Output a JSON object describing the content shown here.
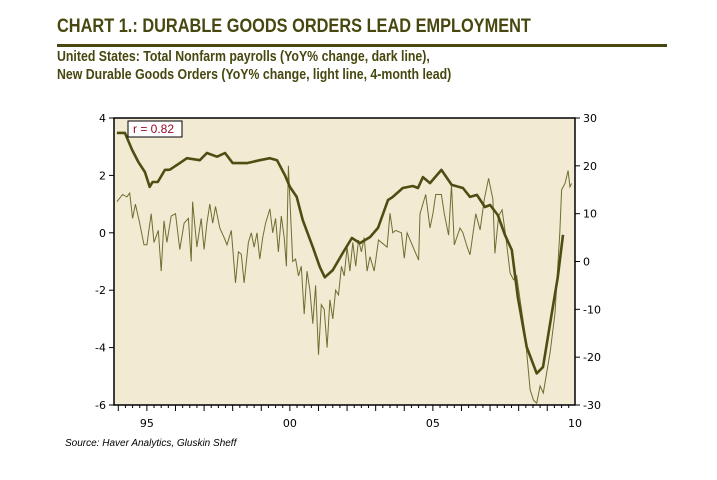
{
  "title": "CHART 1.: DURABLE GOODS ORDERS LEAD EMPLOYMENT",
  "subtitle_line1": "United States: Total Nonfarm payrolls (YoY% change, dark line),",
  "subtitle_line2": "New Durable Goods Orders (YoY% change, light line, 4-month lead)",
  "source": "Source: Haver Analytics, Gluskin Sheff",
  "colors": {
    "title": "#47470f",
    "plot_bg": "#f2ead3",
    "dark_line": "#4e4e12",
    "light_line": "#6e6e30",
    "annotation_text": "#9b0a2a"
  },
  "chart_data": {
    "type": "line",
    "annotation": "r = 0.82",
    "x_range": [
      1993.85,
      2009.97
    ],
    "x_ticks": [
      {
        "value": 1995,
        "label": "95"
      },
      {
        "value": 2000,
        "label": "00"
      },
      {
        "value": 2005,
        "label": "05"
      },
      {
        "value": 2010,
        "label": "10"
      }
    ],
    "left_axis": {
      "range": [
        -6,
        4
      ],
      "ticks": [
        "4",
        "2",
        "0",
        "-2",
        "-4",
        "-6"
      ],
      "tick_values": [
        4,
        2,
        0,
        -2,
        -4,
        -6
      ]
    },
    "right_axis": {
      "range": [
        -30,
        30
      ],
      "ticks": [
        "30",
        "20",
        "10",
        "0",
        "-10",
        "-20",
        "-30"
      ],
      "tick_values": [
        30,
        20,
        10,
        0,
        -10,
        -20,
        -30
      ]
    },
    "grid": false,
    "series": [
      {
        "axis": "left",
        "style": "dark",
        "points": [
          [
            1993.95,
            3.48
          ],
          [
            1994.23,
            3.48
          ],
          [
            1994.48,
            2.9
          ],
          [
            1994.7,
            2.47
          ],
          [
            1994.93,
            2.12
          ],
          [
            1995.1,
            1.6
          ],
          [
            1995.2,
            1.77
          ],
          [
            1995.38,
            1.77
          ],
          [
            1995.63,
            2.19
          ],
          [
            1995.8,
            2.2
          ],
          [
            1996.15,
            2.43
          ],
          [
            1996.4,
            2.6
          ],
          [
            1996.85,
            2.53
          ],
          [
            1997.1,
            2.78
          ],
          [
            1997.45,
            2.65
          ],
          [
            1997.73,
            2.78
          ],
          [
            1998.0,
            2.43
          ],
          [
            1998.5,
            2.43
          ],
          [
            1998.95,
            2.53
          ],
          [
            1999.3,
            2.6
          ],
          [
            1999.55,
            2.53
          ],
          [
            1999.83,
            2.0
          ],
          [
            2000.0,
            1.6
          ],
          [
            2000.24,
            1.25
          ],
          [
            2000.45,
            0.45
          ],
          [
            2000.8,
            -0.5
          ],
          [
            2001.05,
            -1.2
          ],
          [
            2001.22,
            -1.55
          ],
          [
            2001.5,
            -1.3
          ],
          [
            2001.85,
            -0.7
          ],
          [
            2002.17,
            -0.18
          ],
          [
            2002.45,
            -0.36
          ],
          [
            2002.8,
            -0.15
          ],
          [
            2003.08,
            0.17
          ],
          [
            2003.43,
            1.14
          ],
          [
            2003.6,
            1.25
          ],
          [
            2003.95,
            1.56
          ],
          [
            2004.3,
            1.63
          ],
          [
            2004.48,
            1.56
          ],
          [
            2004.65,
            1.94
          ],
          [
            2004.9,
            1.73
          ],
          [
            2005.3,
            2.19
          ],
          [
            2005.66,
            1.67
          ],
          [
            2006.05,
            1.56
          ],
          [
            2006.3,
            1.25
          ],
          [
            2006.54,
            1.32
          ],
          [
            2006.82,
            0.9
          ],
          [
            2007.0,
            0.97
          ],
          [
            2007.27,
            0.62
          ],
          [
            2007.52,
            -0.07
          ],
          [
            2007.76,
            -0.6
          ],
          [
            2007.97,
            -2.24
          ],
          [
            2008.28,
            -3.98
          ],
          [
            2008.63,
            -4.9
          ],
          [
            2008.85,
            -4.68
          ],
          [
            2009.16,
            -2.8
          ],
          [
            2009.37,
            -1.54
          ],
          [
            2009.55,
            -0.07
          ]
        ]
      },
      {
        "axis": "right",
        "style": "light",
        "points": [
          [
            1993.95,
            12.5
          ],
          [
            1994.15,
            14
          ],
          [
            1994.3,
            13.5
          ],
          [
            1994.4,
            14.3
          ],
          [
            1994.5,
            9
          ],
          [
            1994.6,
            12
          ],
          [
            1994.75,
            8
          ],
          [
            1994.9,
            3.5
          ],
          [
            1995.0,
            3.5
          ],
          [
            1995.15,
            10
          ],
          [
            1995.25,
            4
          ],
          [
            1995.4,
            6.5
          ],
          [
            1995.5,
            -2
          ],
          [
            1995.6,
            8.5
          ],
          [
            1995.7,
            4
          ],
          [
            1995.85,
            9.5
          ],
          [
            1996.0,
            10
          ],
          [
            1996.15,
            2.5
          ],
          [
            1996.3,
            8
          ],
          [
            1996.45,
            9
          ],
          [
            1996.55,
            0
          ],
          [
            1996.6,
            12.5
          ],
          [
            1996.75,
            3
          ],
          [
            1996.9,
            9
          ],
          [
            1997.0,
            2.5
          ],
          [
            1997.1,
            8
          ],
          [
            1997.2,
            12
          ],
          [
            1997.3,
            8
          ],
          [
            1997.4,
            11.5
          ],
          [
            1997.55,
            7
          ],
          [
            1997.7,
            5
          ],
          [
            1997.8,
            3.5
          ],
          [
            1997.95,
            6.5
          ],
          [
            1998.1,
            -4.5
          ],
          [
            1998.2,
            2
          ],
          [
            1998.3,
            1.5
          ],
          [
            1998.4,
            -4.5
          ],
          [
            1998.55,
            4
          ],
          [
            1998.65,
            6
          ],
          [
            1998.75,
            3
          ],
          [
            1998.85,
            6
          ],
          [
            1998.95,
            0.5
          ],
          [
            1999.05,
            5
          ],
          [
            1999.15,
            8
          ],
          [
            1999.3,
            11
          ],
          [
            1999.4,
            6
          ],
          [
            1999.5,
            9
          ],
          [
            1999.6,
            2
          ],
          [
            1999.7,
            9.5
          ],
          [
            1999.8,
            5
          ],
          [
            1999.88,
            -1
          ],
          [
            1999.95,
            20
          ],
          [
            2000.1,
            0
          ],
          [
            2000.2,
            0.5
          ],
          [
            2000.3,
            -3
          ],
          [
            2000.4,
            -1
          ],
          [
            2000.5,
            -11
          ],
          [
            2000.6,
            -2
          ],
          [
            2000.7,
            -6
          ],
          [
            2000.8,
            -13
          ],
          [
            2000.9,
            -5
          ],
          [
            2001.0,
            -19.5
          ],
          [
            2001.1,
            -9
          ],
          [
            2001.2,
            -10
          ],
          [
            2001.3,
            -18
          ],
          [
            2001.4,
            -8
          ],
          [
            2001.5,
            -12
          ],
          [
            2001.6,
            -6
          ],
          [
            2001.7,
            -7
          ],
          [
            2001.8,
            -1
          ],
          [
            2001.9,
            -3
          ],
          [
            2002.0,
            3
          ],
          [
            2002.1,
            -2
          ],
          [
            2002.2,
            4
          ],
          [
            2002.3,
            -1
          ],
          [
            2002.4,
            4.5
          ],
          [
            2002.5,
            2
          ],
          [
            2002.6,
            5
          ],
          [
            2002.7,
            -2
          ],
          [
            2002.8,
            1
          ],
          [
            2002.95,
            -2
          ],
          [
            2003.1,
            4.5
          ],
          [
            2003.4,
            3
          ],
          [
            2003.5,
            10.1
          ],
          [
            2003.6,
            6
          ],
          [
            2003.7,
            6.5
          ],
          [
            2003.9,
            6
          ],
          [
            2004.0,
            0.7
          ],
          [
            2004.1,
            6
          ],
          [
            2004.5,
            0.3
          ],
          [
            2004.55,
            10
          ],
          [
            2004.75,
            14
          ],
          [
            2004.9,
            7
          ],
          [
            2005.0,
            10
          ],
          [
            2005.1,
            14
          ],
          [
            2005.3,
            14
          ],
          [
            2005.4,
            10
          ],
          [
            2005.55,
            5.5
          ],
          [
            2005.65,
            16
          ],
          [
            2005.75,
            3.5
          ],
          [
            2005.95,
            7
          ],
          [
            2006.05,
            6
          ],
          [
            2006.2,
            3
          ],
          [
            2006.3,
            1.4
          ],
          [
            2006.5,
            10
          ],
          [
            2006.65,
            6.6
          ],
          [
            2006.8,
            13
          ],
          [
            2006.95,
            17.4
          ],
          [
            2007.1,
            13
          ],
          [
            2007.17,
            1.7
          ],
          [
            2007.3,
            9.5
          ],
          [
            2007.42,
            10.8
          ],
          [
            2007.55,
            5.2
          ],
          [
            2007.7,
            -2.4
          ],
          [
            2007.82,
            -3.8
          ],
          [
            2007.93,
            -3
          ],
          [
            2008.05,
            -8
          ],
          [
            2008.22,
            -15
          ],
          [
            2008.4,
            -26.8
          ],
          [
            2008.52,
            -29
          ],
          [
            2008.63,
            -29.6
          ],
          [
            2008.75,
            -26
          ],
          [
            2008.86,
            -27.5
          ],
          [
            2009.1,
            -19
          ],
          [
            2009.27,
            -10.8
          ],
          [
            2009.44,
            6
          ],
          [
            2009.5,
            15
          ],
          [
            2009.62,
            16.3
          ],
          [
            2009.73,
            19
          ],
          [
            2009.79,
            15.6
          ],
          [
            2009.85,
            16.3
          ]
        ]
      }
    ]
  }
}
